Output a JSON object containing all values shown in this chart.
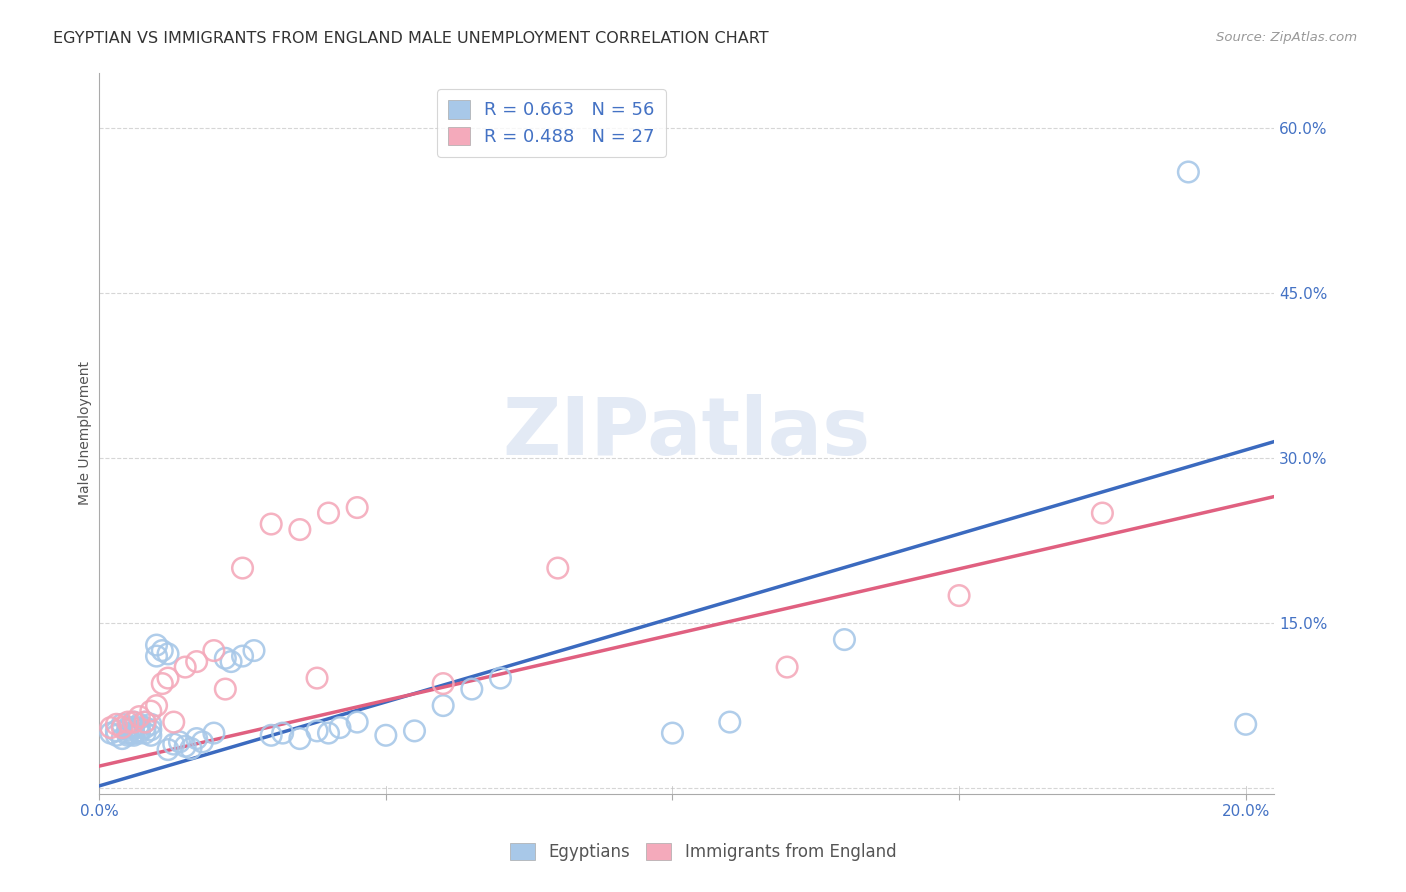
{
  "title": "EGYPTIAN VS IMMIGRANTS FROM ENGLAND MALE UNEMPLOYMENT CORRELATION CHART",
  "source": "Source: ZipAtlas.com",
  "ylabel": "Male Unemployment",
  "xlim": [
    0.0,
    0.205
  ],
  "ylim": [
    -0.005,
    0.65
  ],
  "blue_R": 0.663,
  "blue_N": 56,
  "pink_R": 0.488,
  "pink_N": 27,
  "blue_color": "#a8c8e8",
  "pink_color": "#f4aabb",
  "blue_line_color": "#3b6abf",
  "pink_line_color": "#e06080",
  "legend_text_color": "#4472c4",
  "watermark_text": "ZIPatlas",
  "blue_scatter_x": [
    0.002,
    0.003,
    0.003,
    0.004,
    0.004,
    0.005,
    0.005,
    0.005,
    0.005,
    0.006,
    0.006,
    0.006,
    0.006,
    0.007,
    0.007,
    0.007,
    0.007,
    0.008,
    0.008,
    0.008,
    0.009,
    0.009,
    0.009,
    0.01,
    0.01,
    0.011,
    0.012,
    0.012,
    0.013,
    0.014,
    0.015,
    0.016,
    0.017,
    0.018,
    0.02,
    0.022,
    0.023,
    0.025,
    0.027,
    0.03,
    0.032,
    0.035,
    0.038,
    0.04,
    0.042,
    0.045,
    0.05,
    0.055,
    0.06,
    0.065,
    0.07,
    0.1,
    0.11,
    0.13,
    0.19,
    0.2
  ],
  "blue_scatter_y": [
    0.05,
    0.048,
    0.052,
    0.045,
    0.058,
    0.05,
    0.055,
    0.048,
    0.053,
    0.05,
    0.055,
    0.048,
    0.06,
    0.052,
    0.055,
    0.058,
    0.05,
    0.06,
    0.055,
    0.05,
    0.058,
    0.053,
    0.048,
    0.12,
    0.13,
    0.125,
    0.122,
    0.035,
    0.04,
    0.042,
    0.038,
    0.036,
    0.045,
    0.042,
    0.05,
    0.118,
    0.115,
    0.12,
    0.125,
    0.048,
    0.05,
    0.045,
    0.052,
    0.05,
    0.055,
    0.06,
    0.048,
    0.052,
    0.075,
    0.09,
    0.1,
    0.05,
    0.06,
    0.135,
    0.56,
    0.058
  ],
  "pink_scatter_x": [
    0.002,
    0.003,
    0.004,
    0.005,
    0.006,
    0.007,
    0.008,
    0.009,
    0.01,
    0.011,
    0.012,
    0.013,
    0.015,
    0.017,
    0.02,
    0.022,
    0.025,
    0.03,
    0.035,
    0.038,
    0.04,
    0.045,
    0.06,
    0.08,
    0.12,
    0.15,
    0.175
  ],
  "pink_scatter_y": [
    0.055,
    0.058,
    0.055,
    0.06,
    0.06,
    0.065,
    0.06,
    0.07,
    0.075,
    0.095,
    0.1,
    0.06,
    0.11,
    0.115,
    0.125,
    0.09,
    0.2,
    0.24,
    0.235,
    0.1,
    0.25,
    0.255,
    0.095,
    0.2,
    0.11,
    0.175,
    0.25
  ],
  "blue_line_x": [
    0.0,
    0.205
  ],
  "blue_line_y": [
    0.002,
    0.315
  ],
  "pink_line_x": [
    0.0,
    0.205
  ],
  "pink_line_y": [
    0.02,
    0.265
  ],
  "background_color": "#ffffff",
  "grid_color": "#cccccc",
  "title_fontsize": 11.5,
  "label_fontsize": 10,
  "tick_fontsize": 11,
  "source_fontsize": 9.5
}
